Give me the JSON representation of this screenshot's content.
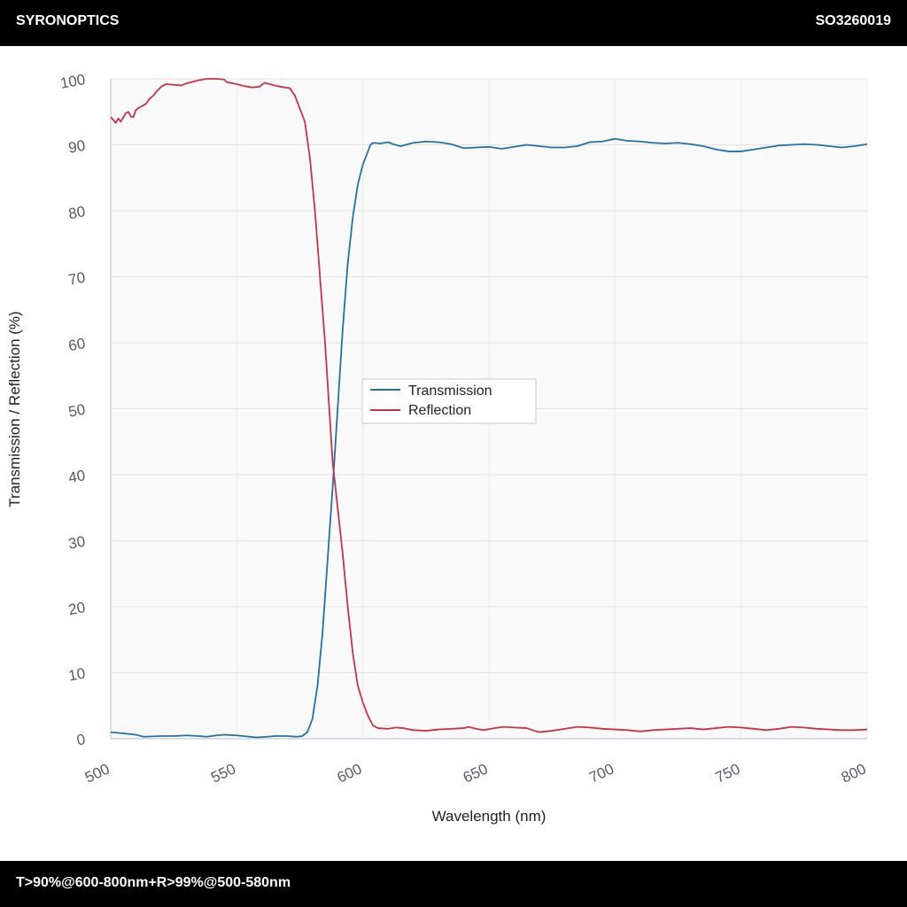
{
  "header": {
    "brand": "SYRONOPTICS",
    "code": "SO3260019"
  },
  "footer": {
    "spec": "T>90%@600-800nm+R>99%@500-580nm"
  },
  "chart_data": {
    "type": "line",
    "title": "",
    "xlabel": "Wavelength (nm)",
    "ylabel": "Transmission / Reflection (%)",
    "xlim": [
      500,
      800
    ],
    "ylim": [
      0,
      100
    ],
    "xticks": [
      500,
      550,
      600,
      650,
      700,
      750,
      800
    ],
    "yticks": [
      0,
      10,
      20,
      30,
      40,
      50,
      60,
      70,
      80,
      90,
      100
    ],
    "grid": true,
    "legend_position": "center",
    "series": [
      {
        "name": "Transmission",
        "color": "#2471a8",
        "points": [
          [
            500,
            1.0
          ],
          [
            505,
            0.8
          ],
          [
            510,
            0.6
          ],
          [
            513,
            0.3
          ],
          [
            520,
            0.4
          ],
          [
            525,
            0.4
          ],
          [
            530,
            0.5
          ],
          [
            535,
            0.4
          ],
          [
            538,
            0.3
          ],
          [
            542,
            0.5
          ],
          [
            545,
            0.6
          ],
          [
            550,
            0.5
          ],
          [
            555,
            0.3
          ],
          [
            558,
            0.2
          ],
          [
            562,
            0.3
          ],
          [
            565,
            0.4
          ],
          [
            570,
            0.4
          ],
          [
            574,
            0.3
          ],
          [
            576,
            0.4
          ],
          [
            578,
            1.0
          ],
          [
            580,
            3.0
          ],
          [
            582,
            8.0
          ],
          [
            584,
            16.0
          ],
          [
            586,
            27.0
          ],
          [
            588,
            38.0
          ],
          [
            590,
            50.0
          ],
          [
            592,
            62.0
          ],
          [
            594,
            72.0
          ],
          [
            596,
            79.0
          ],
          [
            598,
            84.0
          ],
          [
            600,
            87.0
          ],
          [
            602,
            89.0
          ],
          [
            603,
            90.0
          ],
          [
            604,
            90.3
          ],
          [
            607,
            90.2
          ],
          [
            610,
            90.4
          ],
          [
            612,
            90.1
          ],
          [
            615,
            89.8
          ],
          [
            620,
            90.3
          ],
          [
            625,
            90.5
          ],
          [
            630,
            90.4
          ],
          [
            635,
            90.1
          ],
          [
            640,
            89.5
          ],
          [
            645,
            89.6
          ],
          [
            650,
            89.7
          ],
          [
            655,
            89.4
          ],
          [
            660,
            89.7
          ],
          [
            665,
            90.0
          ],
          [
            670,
            89.8
          ],
          [
            675,
            89.6
          ],
          [
            680,
            89.6
          ],
          [
            685,
            89.8
          ],
          [
            690,
            90.4
          ],
          [
            695,
            90.5
          ],
          [
            700,
            90.9
          ],
          [
            705,
            90.6
          ],
          [
            710,
            90.5
          ],
          [
            715,
            90.3
          ],
          [
            720,
            90.2
          ],
          [
            725,
            90.3
          ],
          [
            730,
            90.1
          ],
          [
            735,
            89.8
          ],
          [
            740,
            89.3
          ],
          [
            745,
            89.0
          ],
          [
            750,
            89.0
          ],
          [
            755,
            89.3
          ],
          [
            760,
            89.6
          ],
          [
            765,
            89.9
          ],
          [
            770,
            90.0
          ],
          [
            775,
            90.1
          ],
          [
            780,
            90.0
          ],
          [
            785,
            89.8
          ],
          [
            790,
            89.6
          ],
          [
            795,
            89.8
          ],
          [
            800,
            90.1
          ]
        ]
      },
      {
        "name": "Reflection",
        "color": "#c8334a",
        "points": [
          [
            500,
            94.2
          ],
          [
            501,
            93.8
          ],
          [
            502,
            93.3
          ],
          [
            503,
            94.0
          ],
          [
            504,
            93.5
          ],
          [
            506,
            94.8
          ],
          [
            507,
            95.0
          ],
          [
            508,
            94.3
          ],
          [
            509,
            94.2
          ],
          [
            510,
            95.3
          ],
          [
            512,
            95.8
          ],
          [
            514,
            96.2
          ],
          [
            515,
            96.8
          ],
          [
            517,
            97.5
          ],
          [
            518,
            98.0
          ],
          [
            520,
            98.8
          ],
          [
            522,
            99.2
          ],
          [
            525,
            99.1
          ],
          [
            528,
            99.0
          ],
          [
            530,
            99.3
          ],
          [
            533,
            99.6
          ],
          [
            535,
            99.8
          ],
          [
            538,
            100.0
          ],
          [
            542,
            100.0
          ],
          [
            545,
            99.9
          ],
          [
            546,
            99.5
          ],
          [
            550,
            99.2
          ],
          [
            553,
            98.9
          ],
          [
            556,
            98.7
          ],
          [
            559,
            98.8
          ],
          [
            561,
            99.4
          ],
          [
            563,
            99.2
          ],
          [
            566,
            98.9
          ],
          [
            569,
            98.7
          ],
          [
            571,
            98.6
          ],
          [
            573,
            97.5
          ],
          [
            575,
            95.5
          ],
          [
            577,
            93.5
          ],
          [
            579,
            88.0
          ],
          [
            581,
            80.0
          ],
          [
            583,
            70.0
          ],
          [
            585,
            60.0
          ],
          [
            587,
            48.0
          ],
          [
            588,
            42.0
          ],
          [
            590,
            35.0
          ],
          [
            592,
            28.0
          ],
          [
            594,
            20.0
          ],
          [
            596,
            13.0
          ],
          [
            598,
            8.0
          ],
          [
            600,
            5.5
          ],
          [
            602,
            3.5
          ],
          [
            604,
            2.0
          ],
          [
            606,
            1.6
          ],
          [
            610,
            1.5
          ],
          [
            613,
            1.7
          ],
          [
            616,
            1.6
          ],
          [
            620,
            1.3
          ],
          [
            625,
            1.2
          ],
          [
            630,
            1.4
          ],
          [
            635,
            1.5
          ],
          [
            640,
            1.6
          ],
          [
            642,
            1.8
          ],
          [
            645,
            1.5
          ],
          [
            648,
            1.3
          ],
          [
            652,
            1.6
          ],
          [
            656,
            1.8
          ],
          [
            660,
            1.7
          ],
          [
            665,
            1.6
          ],
          [
            668,
            1.2
          ],
          [
            670,
            1.0
          ],
          [
            675,
            1.2
          ],
          [
            680,
            1.5
          ],
          [
            685,
            1.8
          ],
          [
            690,
            1.7
          ],
          [
            695,
            1.5
          ],
          [
            700,
            1.4
          ],
          [
            705,
            1.3
          ],
          [
            710,
            1.1
          ],
          [
            715,
            1.3
          ],
          [
            720,
            1.4
          ],
          [
            725,
            1.5
          ],
          [
            730,
            1.6
          ],
          [
            735,
            1.4
          ],
          [
            740,
            1.6
          ],
          [
            745,
            1.8
          ],
          [
            750,
            1.7
          ],
          [
            755,
            1.5
          ],
          [
            760,
            1.3
          ],
          [
            765,
            1.5
          ],
          [
            770,
            1.8
          ],
          [
            775,
            1.7
          ],
          [
            780,
            1.5
          ],
          [
            785,
            1.4
          ],
          [
            790,
            1.3
          ],
          [
            795,
            1.3
          ],
          [
            800,
            1.4
          ]
        ]
      }
    ]
  }
}
